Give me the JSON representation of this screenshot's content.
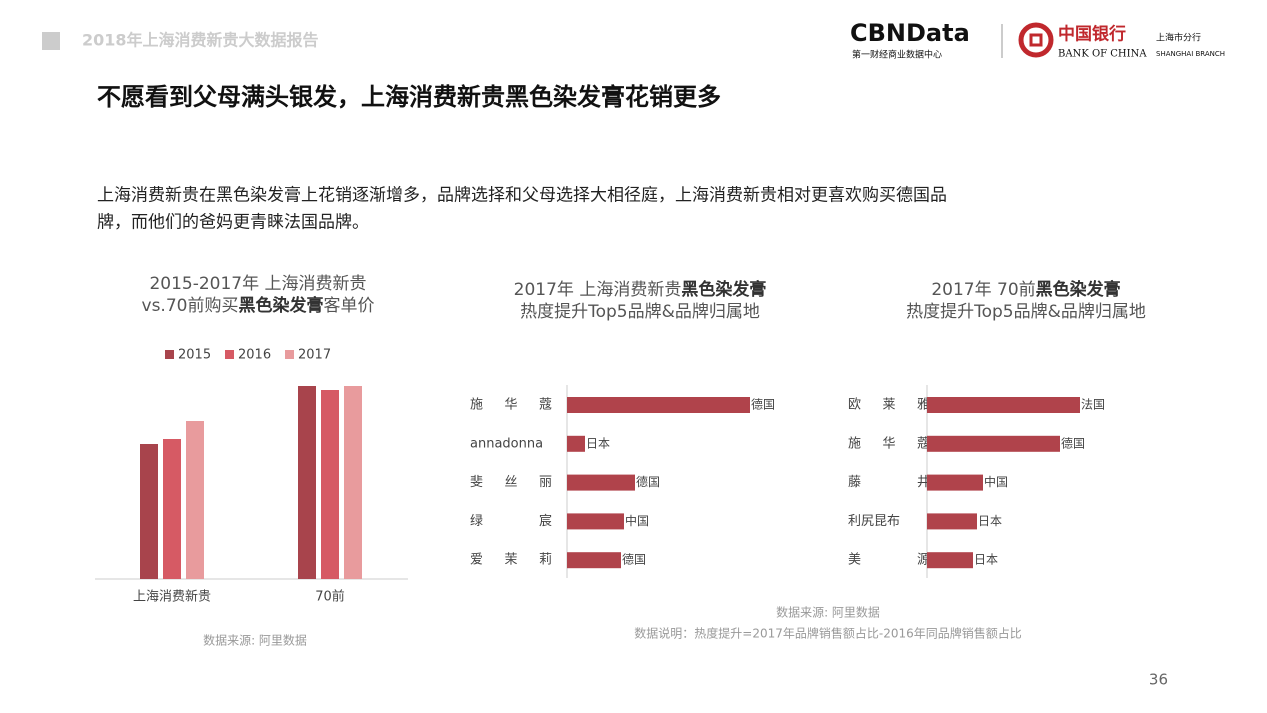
{
  "header": {
    "report": "2018年上海消费新贵大数据报告",
    "logo_main": "CBNData",
    "logo_sub": "第一财经商业数据中心",
    "bank_cn": "中国银行",
    "bank_en": "BANK OF CHINA",
    "branch_cn": "上海市分行",
    "branch_en": "SHANGHAI BRANCH"
  },
  "title": "不愿看到父母满头银发，上海消费新贵黑色染发膏花销更多",
  "body": [
    "上海消费新贵在黑色染发膏上花销逐渐增多，品牌选择和父母选择大相径庭，上海消费新贵相对更喜欢购买德国品",
    "牌，而他们的爸妈更青睐法国品牌。"
  ],
  "chart_data": [
    {
      "type": "bar",
      "title": [
        [
          {
            "text": "2015-2017年 上海消费新贵"
          }
        ],
        [
          {
            "text": "vs.70前购买"
          },
          {
            "text": "黑色染发膏",
            "bold": true
          },
          {
            "text": "客单价"
          }
        ]
      ],
      "categories": [
        "上海消费新贵",
        "70前"
      ],
      "series": [
        {
          "name": "2015",
          "color": "#a8444c",
          "values": [
            135,
            193
          ]
        },
        {
          "name": "2016",
          "color": "#d65a64",
          "values": [
            140,
            189
          ]
        },
        {
          "name": "2017",
          "color": "#e89b9d",
          "values": [
            158,
            193
          ]
        }
      ],
      "source": "数据来源: 阿里数据"
    },
    {
      "type": "hbar",
      "title": [
        [
          {
            "text": "2017年  上海消费新贵"
          },
          {
            "text": "黑色染发膏",
            "bold": true
          }
        ],
        [
          {
            "text": "热度提升Top5品牌&品牌归属地"
          }
        ]
      ],
      "categories": [
        "施 华 蔻",
        "annadonna",
        "斐 丝 丽",
        "绿 宸",
        "爱 茉 莉"
      ],
      "values": [
        183,
        18,
        68,
        57,
        54
      ],
      "value_labels": [
        "德国",
        "日本",
        "德国",
        "中国",
        "德国"
      ],
      "color": "#b0434b"
    },
    {
      "type": "hbar",
      "title": [
        [
          {
            "text": "2017年  70前"
          },
          {
            "text": "黑色染发膏",
            "bold": true
          }
        ],
        [
          {
            "text": "热度提升Top5品牌&品牌归属地"
          }
        ]
      ],
      "categories": [
        "欧 莱 雅",
        "施 华 蔻",
        "藤 井",
        "利尻昆布",
        "美 源"
      ],
      "values": [
        153,
        133,
        56,
        50,
        46
      ],
      "value_labels": [
        "法国",
        "德国",
        "中国",
        "日本",
        "日本"
      ],
      "color": "#b0434b"
    }
  ],
  "notes": [
    "数据来源: 阿里数据",
    "数据说明：热度提升=2017年品牌销售额占比-2016年同品牌销售额占比"
  ],
  "page_number": "36"
}
